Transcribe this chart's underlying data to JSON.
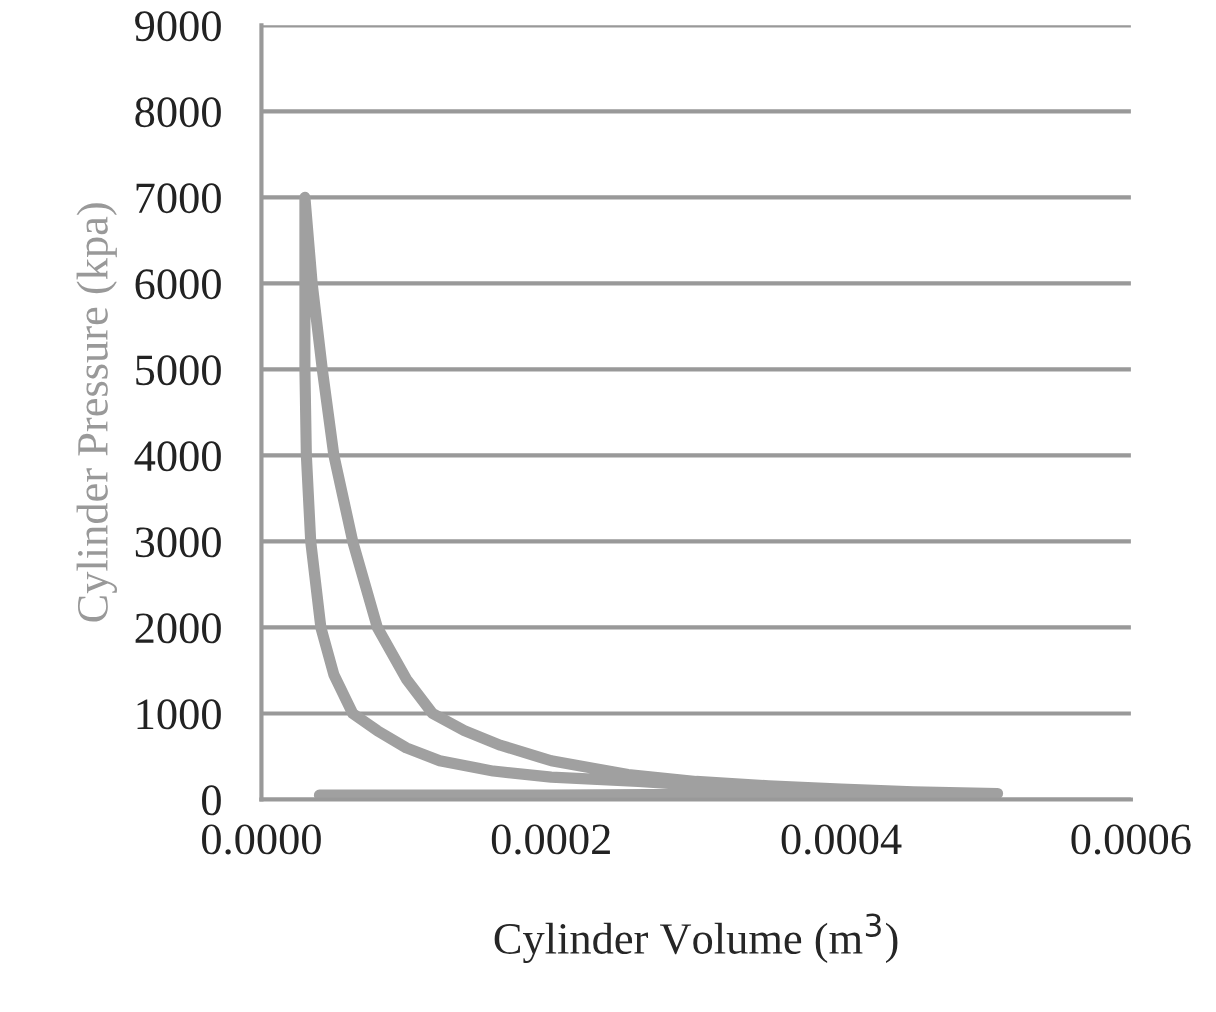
{
  "chart_data": {
    "type": "line",
    "xlabel": "Cylinder Volume (m$^{3}$)",
    "ylabel": "Cylinder Pressure (kpa)",
    "series": [
      {
        "color": "#a0a0a0",
        "x": [
          4e-05,
          0.0001,
          0.0002,
          0.0003,
          0.0004,
          0.000508,
          0.00045,
          0.00035,
          0.00026,
          0.0002,
          0.00016,
          0.000123,
          0.0001,
          8e-05,
          6.3e-05,
          5e-05,
          4.1e-05,
          3.4e-05,
          3.1e-05,
          3e-05,
          3e-05,
          3.5e-05,
          4.2e-05,
          5e-05,
          6.3e-05,
          8e-05,
          0.0001,
          0.000118,
          0.00014,
          0.000165,
          0.0002,
          0.000253,
          0.0003,
          0.00035,
          0.0004,
          0.00045,
          0.000508
        ],
        "values": [
          50,
          50,
          50,
          60,
          60,
          70,
          80,
          110,
          210,
          260,
          330,
          450,
          600,
          800,
          1000,
          1450,
          2000,
          3000,
          4000,
          5000,
          7000,
          6000,
          5000,
          4000,
          3000,
          2000,
          1400,
          1000,
          800,
          630,
          450,
          290,
          210,
          160,
          120,
          90,
          70
        ]
      }
    ],
    "xlim": [
      0,
      0.0006
    ],
    "xticks": [
      {
        "value": 0,
        "label": "0.0000"
      },
      {
        "value": 0.0002,
        "label": "0.0002"
      },
      {
        "value": 0.0004,
        "label": "0.0004"
      },
      {
        "value": 0.0006,
        "label": "0.0006"
      }
    ],
    "ylim": [
      0,
      9000
    ],
    "yticks": [
      0,
      1000,
      2000,
      3000,
      4000,
      5000,
      6000,
      7000,
      8000,
      9000
    ],
    "grid": "y",
    "marker": "none",
    "line_style": "solid"
  }
}
